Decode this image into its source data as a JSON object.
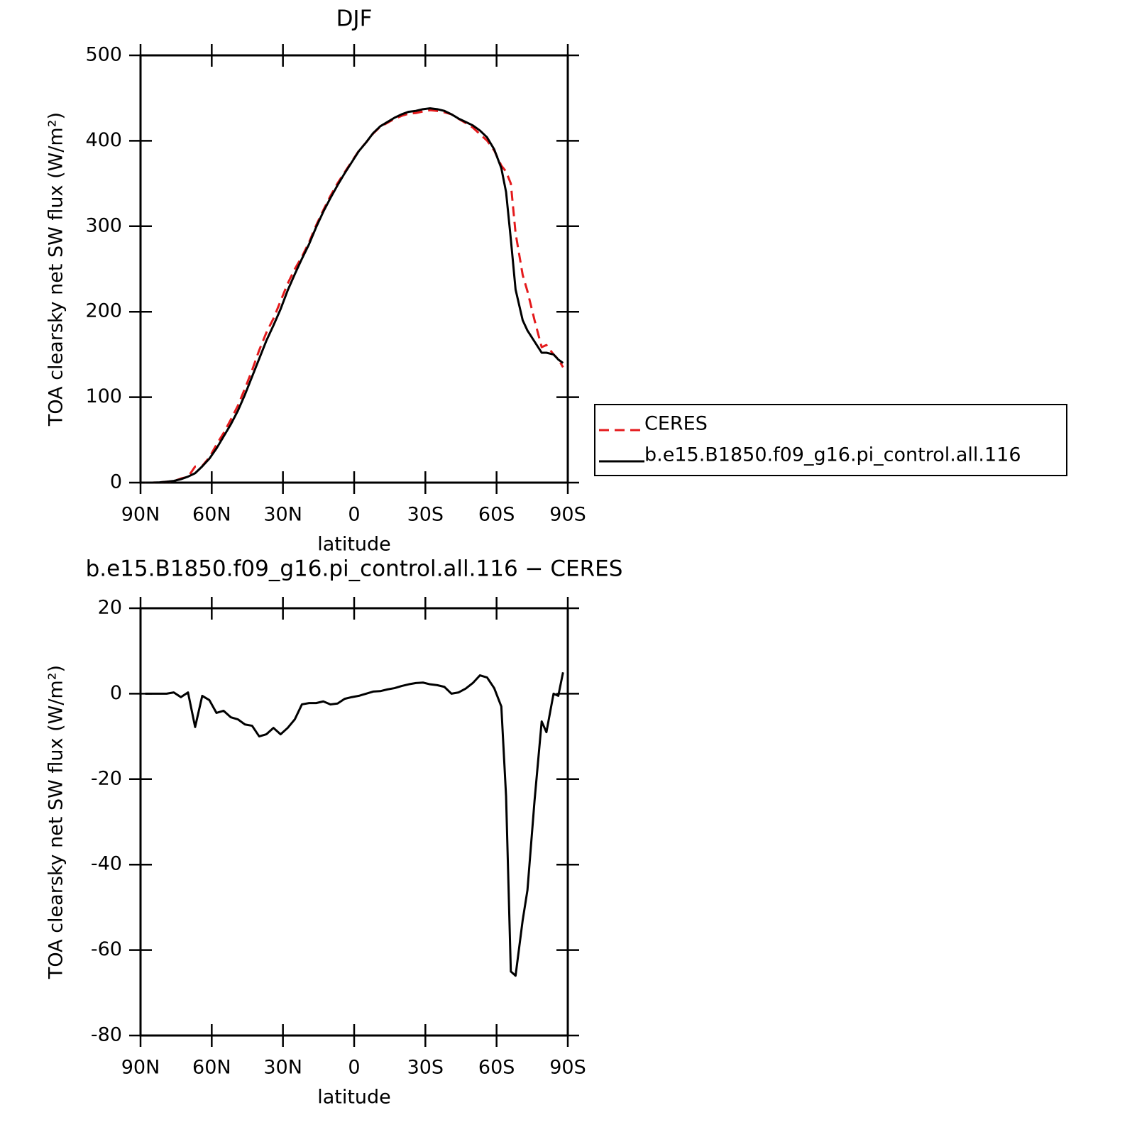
{
  "chart_data": [
    {
      "type": "line",
      "title": "DJF",
      "xlabel": "latitude",
      "ylabel": "TOA clearsky net SW flux (W/m²)",
      "x": [
        88,
        85,
        82,
        79,
        76,
        73,
        70,
        67,
        64,
        61,
        58,
        55,
        52,
        49,
        46,
        43,
        40,
        37,
        34,
        31,
        28,
        25,
        22,
        19,
        16,
        13,
        10,
        7,
        4,
        1,
        -2,
        -5,
        -8,
        -11,
        -14,
        -17,
        -20,
        -23,
        -26,
        -29,
        -32,
        -35,
        -38,
        -41,
        -44,
        -47,
        -50,
        -53,
        -56,
        -59,
        -62,
        -64,
        -66,
        -68,
        -71,
        -73,
        -76,
        -79,
        -81,
        -84,
        -86,
        -88
      ],
      "series": [
        {
          "name": "CERES",
          "color": "#e41a1c",
          "dashed": true,
          "values": [
            0,
            0,
            0.3,
            1,
            1.7,
            4.8,
            6.7,
            18.8,
            19.5,
            29.5,
            44.5,
            58,
            73.5,
            90,
            110.2,
            131.5,
            155,
            175.5,
            192,
            212.5,
            233,
            250,
            264.5,
            281.2,
            301.2,
            318.8,
            335.5,
            350.3,
            363.2,
            375.8,
            388.5,
            398,
            408.5,
            416.4,
            421,
            425.7,
            429.2,
            431.8,
            432.5,
            434.4,
            435.8,
            435,
            433.4,
            431,
            425.7,
            420.8,
            415.5,
            407.7,
            400.2,
            388.7,
            371,
            364,
            350,
            292,
            243,
            224,
            190,
            158.5,
            161,
            150,
            144.5,
            135
          ]
        },
        {
          "name": "b.e15.B1850.f09_g16.pi_control.all.116",
          "color": "#000000",
          "dashed": false,
          "values": [
            0,
            0,
            0.3,
            1,
            2,
            4,
            7,
            11,
            19,
            28,
            40,
            54,
            68,
            84,
            103,
            124,
            145,
            166,
            184,
            203,
            225,
            244,
            262,
            279,
            299,
            317,
            333,
            348,
            362,
            375,
            388,
            398,
            409,
            417,
            422,
            427,
            431,
            434,
            435,
            437,
            438,
            437,
            435,
            431,
            426,
            422,
            418,
            412,
            404,
            390,
            368,
            340,
            285,
            226,
            190,
            178,
            165,
            152,
            152,
            150,
            144,
            140
          ]
        }
      ],
      "xlim": [
        90,
        -90
      ],
      "xticks": [
        {
          "value": 90,
          "label": "90N"
        },
        {
          "value": 60,
          "label": "60N"
        },
        {
          "value": 30,
          "label": "30N"
        },
        0,
        {
          "value": -30,
          "label": "30S"
        },
        {
          "value": -60,
          "label": "60S"
        },
        {
          "value": -90,
          "label": "90S"
        }
      ],
      "ylim": [
        0,
        500
      ],
      "yticks": [
        0,
        100,
        200,
        300,
        400,
        500
      ],
      "legend": "right"
    },
    {
      "type": "line",
      "title": "b.e15.B1850.f09_g16.pi_control.all.116 − CERES",
      "xlabel": "latitude",
      "ylabel": "TOA clearsky net SW flux (W/m²)",
      "x": [
        88,
        85,
        82,
        79,
        76,
        73,
        70,
        67,
        64,
        61,
        58,
        55,
        52,
        49,
        46,
        43,
        40,
        37,
        34,
        31,
        28,
        25,
        22,
        19,
        16,
        13,
        10,
        7,
        4,
        1,
        -2,
        -5,
        -8,
        -11,
        -14,
        -17,
        -20,
        -23,
        -26,
        -29,
        -32,
        -35,
        -38,
        -41,
        -44,
        -47,
        -50,
        -53,
        -56,
        -59,
        -62,
        -64,
        -66,
        -68,
        -71,
        -73,
        -76,
        -79,
        -81,
        -84,
        -86,
        -88
      ],
      "series": [
        {
          "color": "#000000",
          "dashed": false,
          "values": [
            0,
            0,
            0,
            0,
            0.3,
            -0.8,
            0.3,
            -7.8,
            -0.5,
            -1.5,
            -4.5,
            -4,
            -5.5,
            -6,
            -7.2,
            -7.5,
            -10,
            -9.5,
            -8,
            -9.5,
            -8,
            -6,
            -2.5,
            -2.2,
            -2.2,
            -1.8,
            -2.5,
            -2.3,
            -1.2,
            -0.8,
            -0.5,
            0,
            0.5,
            0.6,
            1,
            1.3,
            1.8,
            2.2,
            2.5,
            2.6,
            2.2,
            2,
            1.6,
            0,
            0.3,
            1.2,
            2.5,
            4.3,
            3.8,
            1.3,
            -3,
            -24,
            -65,
            -66,
            -53,
            -46,
            -25,
            -6.5,
            -9,
            0,
            -0.5,
            5
          ]
        }
      ],
      "xlim": [
        90,
        -90
      ],
      "xticks": [
        {
          "value": 90,
          "label": "90N"
        },
        {
          "value": 60,
          "label": "60N"
        },
        {
          "value": 30,
          "label": "30N"
        },
        0,
        {
          "value": -30,
          "label": "30S"
        },
        {
          "value": -60,
          "label": "60S"
        },
        {
          "value": -90,
          "label": "90S"
        }
      ],
      "ylim": [
        -80,
        20
      ],
      "yticks": [
        -80,
        -60,
        -40,
        -20,
        0,
        20
      ]
    }
  ]
}
